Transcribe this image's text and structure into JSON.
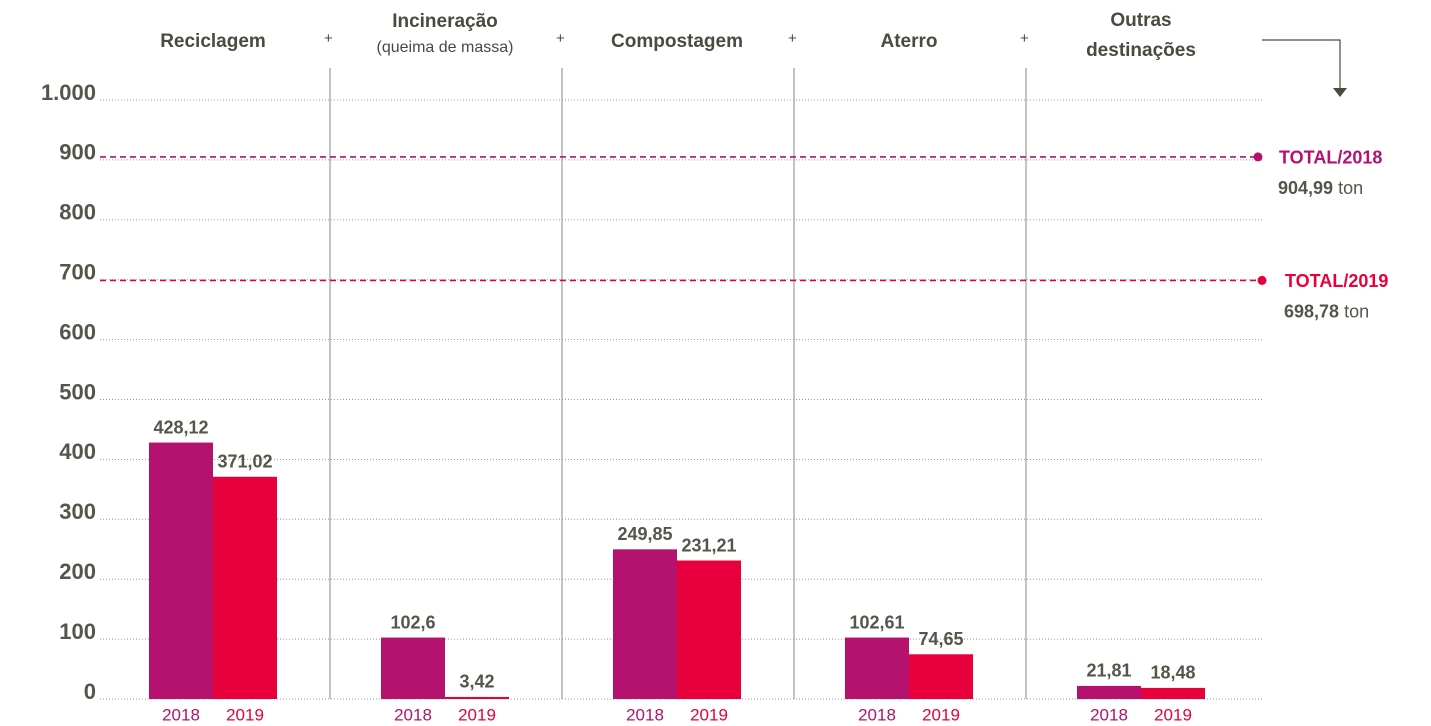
{
  "chart_data": {
    "type": "bar",
    "categories": [
      "Reciclagem",
      "Incineração",
      "Compostagem",
      "Aterro",
      "Outras destinações"
    ],
    "category_notes": [
      null,
      "(queima de massa)",
      null,
      null,
      null
    ],
    "joiner": "+",
    "series": [
      {
        "name": "2018",
        "color": "#b5126f",
        "values": [
          428.12,
          102.6,
          249.85,
          102.61,
          21.81
        ],
        "value_labels": [
          "428,12",
          "102,6",
          "249,85",
          "102,61",
          "21,81"
        ]
      },
      {
        "name": "2019",
        "color": "#e8003d",
        "values": [
          371.02,
          3.42,
          231.21,
          74.65,
          18.48
        ],
        "value_labels": [
          "371,02",
          "3,42",
          "231,21",
          "74,65",
          "18,48"
        ]
      }
    ],
    "ylim": [
      0,
      1000
    ],
    "yticks": [
      0,
      100,
      200,
      300,
      400,
      500,
      600,
      700,
      800,
      900,
      {
        "value": 1000,
        "label": "1.000"
      }
    ],
    "grid": true,
    "annotations": [
      {
        "label": "TOTAL/2018",
        "value": 904.99,
        "value_label": "904,99",
        "unit": "ton",
        "color": "#b5126f"
      },
      {
        "label": "TOTAL/2019",
        "value": 698.78,
        "value_label": "698,78",
        "unit": "ton",
        "color": "#e8003d"
      }
    ]
  }
}
